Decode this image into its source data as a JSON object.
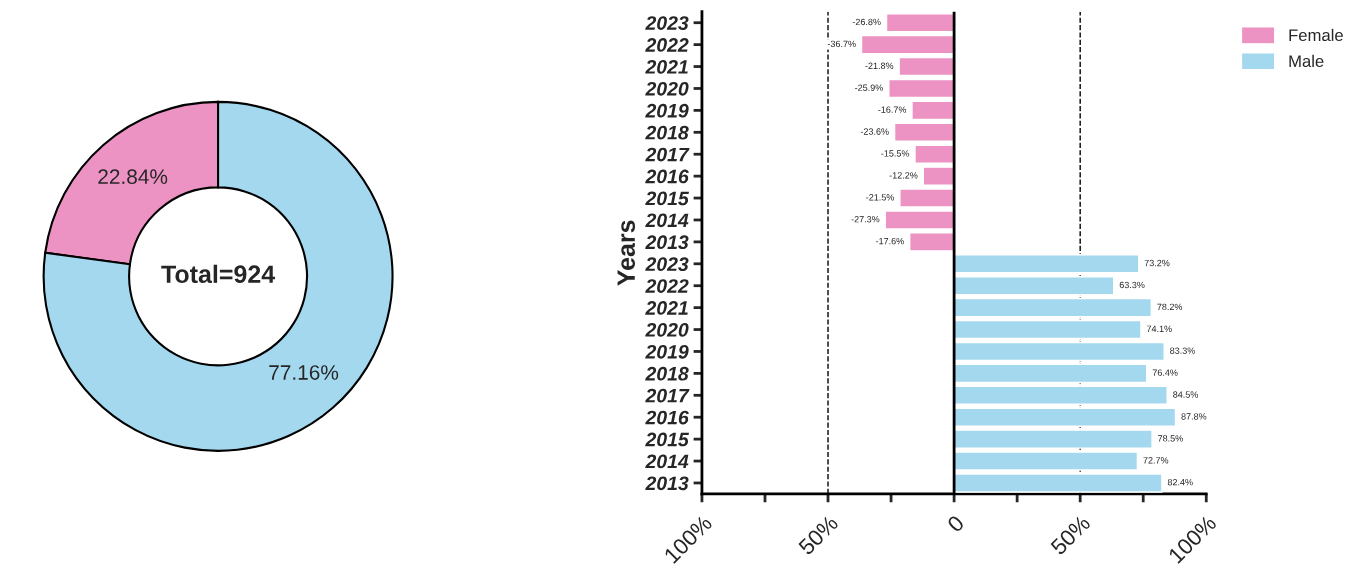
{
  "chart_data": [
    {
      "type": "donut",
      "categories": [
        null,
        null
      ],
      "values": [
        22.84,
        77.16
      ],
      "colors": [
        "#ec93c3",
        "#a3d8ef"
      ],
      "value_labels": [
        "22.84%",
        "77.16%"
      ],
      "annotations": [
        "Total=924"
      ]
    },
    {
      "type": "bar",
      "orientation": "horizontal",
      "ylabel": "Years",
      "categories": [
        "2023",
        "2022",
        "2021",
        "2020",
        "2019",
        "2018",
        "2017",
        "2016",
        "2015",
        "2014",
        "2013",
        "2023",
        "2022",
        "2021",
        "2020",
        "2019",
        "2018",
        "2017",
        "2016",
        "2015",
        "2014",
        "2013"
      ],
      "series": [
        {
          "name": "Female",
          "color": "#ec93c3",
          "values": [
            -26.8,
            -36.7,
            -21.8,
            -25.9,
            -16.7,
            -23.6,
            -15.5,
            -12.2,
            -21.5,
            -27.3,
            -17.6,
            null,
            null,
            null,
            null,
            null,
            null,
            null,
            null,
            null,
            null,
            null
          ],
          "value_labels": [
            "-26.8%",
            "-36.7%",
            "-21.8%",
            "-25.9%",
            "-16.7%",
            "-23.6%",
            "-15.5%",
            "-12.2%",
            "-21.5%",
            "-27.3%",
            "-17.6%",
            null,
            null,
            null,
            null,
            null,
            null,
            null,
            null,
            null,
            null,
            null
          ]
        },
        {
          "name": "Male",
          "color": "#a3d8ef",
          "values": [
            null,
            null,
            null,
            null,
            null,
            null,
            null,
            null,
            null,
            null,
            null,
            73.2,
            63.3,
            78.2,
            74.1,
            83.3,
            76.4,
            84.5,
            87.8,
            78.5,
            72.7,
            82.4
          ],
          "value_labels": [
            null,
            null,
            null,
            null,
            null,
            null,
            null,
            null,
            null,
            null,
            null,
            "73.2%",
            "63.3%",
            "78.2%",
            "74.1%",
            "83.3%",
            "76.4%",
            "84.5%",
            "87.8%",
            "78.5%",
            "72.7%",
            "82.4%"
          ]
        }
      ],
      "xlim": [
        -100,
        100
      ],
      "xticks": [
        {
          "value": -100,
          "label": "100%"
        },
        {
          "value": -75,
          "label": null
        },
        {
          "value": -50,
          "label": "50%"
        },
        {
          "value": -25,
          "label": null
        },
        {
          "value": 0,
          "label": "0"
        },
        {
          "value": 25,
          "label": null
        },
        {
          "value": 50,
          "label": "50%"
        },
        {
          "value": 75,
          "label": null
        },
        {
          "value": 100,
          "label": "100%"
        }
      ],
      "ref_lines": [
        {
          "axis": "x",
          "value": -50,
          "line_style": "dashed",
          "color": "#000000"
        },
        {
          "axis": "x",
          "value": 0,
          "line_style": "solid",
          "color": "#000000"
        },
        {
          "axis": "x",
          "value": 50,
          "line_style": "dashed",
          "color": "#000000"
        }
      ],
      "grid": false,
      "legend": "top right"
    }
  ]
}
